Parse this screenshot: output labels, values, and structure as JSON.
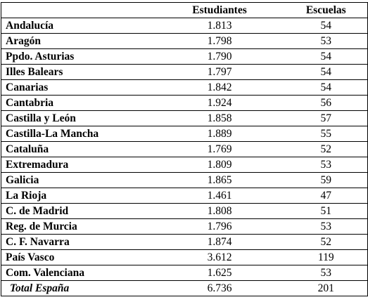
{
  "table": {
    "headers": {
      "region": "",
      "estudiantes": "Estudiantes",
      "escuelas": "Escuelas"
    },
    "rows": [
      {
        "region": "Andalucía",
        "estudiantes": "1.813",
        "escuelas": "54"
      },
      {
        "region": "Aragón",
        "estudiantes": "1.798",
        "escuelas": "53"
      },
      {
        "region": "Ppdo. Asturias",
        "estudiantes": "1.790",
        "escuelas": "54"
      },
      {
        "region": "Illes Balears",
        "estudiantes": "1.797",
        "escuelas": "54"
      },
      {
        "region": "Canarias",
        "estudiantes": "1.842",
        "escuelas": "54"
      },
      {
        "region": "Cantabria",
        "estudiantes": "1.924",
        "escuelas": "56"
      },
      {
        "region": "Castilla y León",
        "estudiantes": "1.858",
        "escuelas": "57"
      },
      {
        "region": "Castilla-La Mancha",
        "estudiantes": "1.889",
        "escuelas": "55"
      },
      {
        "region": "Cataluña",
        "estudiantes": "1.769",
        "escuelas": "52"
      },
      {
        "region": "Extremadura",
        "estudiantes": "1.809",
        "escuelas": "53"
      },
      {
        "region": "Galicia",
        "estudiantes": "1.865",
        "escuelas": "59"
      },
      {
        "region": "La Rioja",
        "estudiantes": "1.461",
        "escuelas": "47"
      },
      {
        "region": "C. de Madrid",
        "estudiantes": "1.808",
        "escuelas": "51"
      },
      {
        "region": "Reg. de Murcia",
        "estudiantes": "1.796",
        "escuelas": "53"
      },
      {
        "region": "C. F. Navarra",
        "estudiantes": "1.874",
        "escuelas": "52"
      },
      {
        "region": "País Vasco",
        "estudiantes": "3.612",
        "escuelas": "119"
      },
      {
        "region": "Com. Valenciana",
        "estudiantes": "1.625",
        "escuelas": "53"
      }
    ],
    "total": {
      "region": "Total España",
      "estudiantes": "6.736",
      "escuelas": "201"
    }
  }
}
